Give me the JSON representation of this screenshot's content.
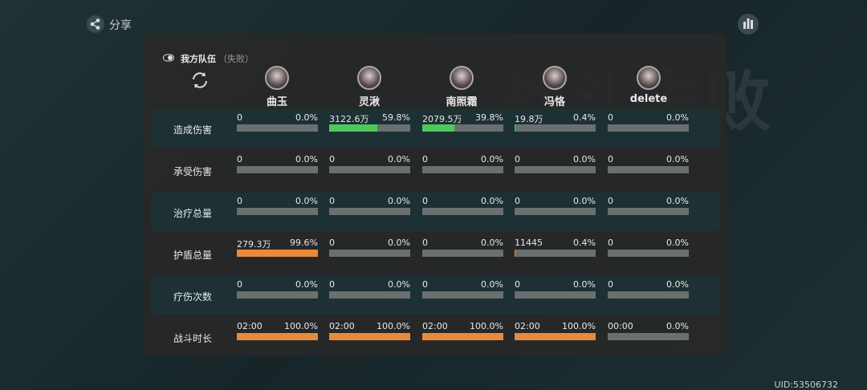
{
  "share": "分享",
  "background_text": "战斗失败",
  "team": {
    "title": "我方队伍",
    "result": "（失败）"
  },
  "players": [
    "曲玉",
    "灵湫",
    "南照霜",
    "冯恪",
    "delete"
  ],
  "rows": [
    {
      "label": "造成伤害",
      "color": "#4cc95a",
      "cells": [
        {
          "value": "0",
          "percent": 0.0,
          "percent_label": "0.0%"
        },
        {
          "value": "3122.6万",
          "percent": 59.8,
          "percent_label": "59.8%"
        },
        {
          "value": "2079.5万",
          "percent": 39.8,
          "percent_label": "39.8%"
        },
        {
          "value": "19.8万",
          "percent": 0.4,
          "percent_label": "0.4%"
        },
        {
          "value": "0",
          "percent": 0.0,
          "percent_label": "0.0%"
        }
      ]
    },
    {
      "label": "承受伤害",
      "color": "#4cc95a",
      "cells": [
        {
          "value": "0",
          "percent": 0.0,
          "percent_label": "0.0%"
        },
        {
          "value": "0",
          "percent": 0.0,
          "percent_label": "0.0%"
        },
        {
          "value": "0",
          "percent": 0.0,
          "percent_label": "0.0%"
        },
        {
          "value": "0",
          "percent": 0.0,
          "percent_label": "0.0%"
        },
        {
          "value": "0",
          "percent": 0.0,
          "percent_label": "0.0%"
        }
      ]
    },
    {
      "label": "治疗总量",
      "color": "#4cc95a",
      "cells": [
        {
          "value": "0",
          "percent": 0.0,
          "percent_label": "0.0%"
        },
        {
          "value": "0",
          "percent": 0.0,
          "percent_label": "0.0%"
        },
        {
          "value": "0",
          "percent": 0.0,
          "percent_label": "0.0%"
        },
        {
          "value": "0",
          "percent": 0.0,
          "percent_label": "0.0%"
        },
        {
          "value": "0",
          "percent": 0.0,
          "percent_label": "0.0%"
        }
      ]
    },
    {
      "label": "护盾总量",
      "color": "#e88a3c",
      "cells": [
        {
          "value": "279.3万",
          "percent": 99.6,
          "percent_label": "99.6%"
        },
        {
          "value": "0",
          "percent": 0.0,
          "percent_label": "0.0%"
        },
        {
          "value": "0",
          "percent": 0.0,
          "percent_label": "0.0%"
        },
        {
          "value": "11445",
          "percent": 0.4,
          "percent_label": "0.4%"
        },
        {
          "value": "0",
          "percent": 0.0,
          "percent_label": "0.0%"
        }
      ]
    },
    {
      "label": "疗伤次数",
      "color": "#4cc95a",
      "cells": [
        {
          "value": "0",
          "percent": 0.0,
          "percent_label": "0.0%"
        },
        {
          "value": "0",
          "percent": 0.0,
          "percent_label": "0.0%"
        },
        {
          "value": "0",
          "percent": 0.0,
          "percent_label": "0.0%"
        },
        {
          "value": "0",
          "percent": 0.0,
          "percent_label": "0.0%"
        },
        {
          "value": "0",
          "percent": 0.0,
          "percent_label": "0.0%"
        }
      ]
    },
    {
      "label": "战斗时长",
      "color": "#e88a3c",
      "cells": [
        {
          "value": "02:00",
          "percent": 100.0,
          "percent_label": "100.0%"
        },
        {
          "value": "02:00",
          "percent": 100.0,
          "percent_label": "100.0%"
        },
        {
          "value": "02:00",
          "percent": 100.0,
          "percent_label": "100.0%"
        },
        {
          "value": "02:00",
          "percent": 100.0,
          "percent_label": "100.0%"
        },
        {
          "value": "00:00",
          "percent": 0.0,
          "percent_label": "0.0%"
        }
      ]
    }
  ],
  "uid": "UID:53506732"
}
